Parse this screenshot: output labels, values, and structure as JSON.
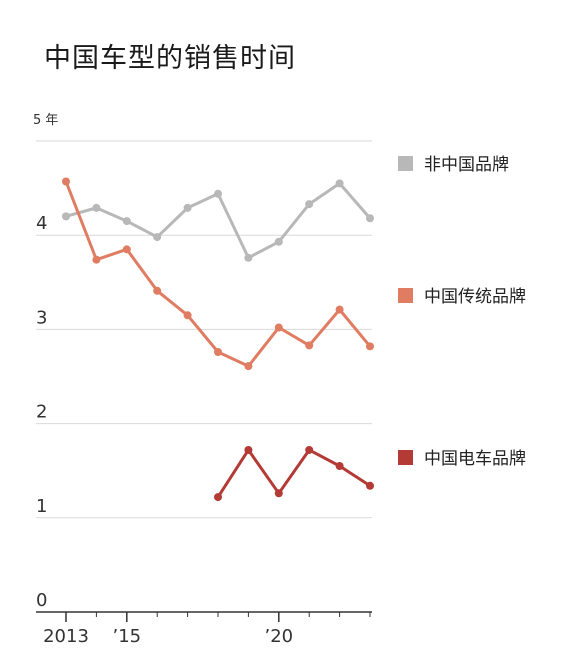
{
  "chart_data": {
    "type": "line",
    "title": "中国车型的销售时间",
    "y_unit_label": "5 年",
    "ylim": [
      0,
      5
    ],
    "y_ticks": [
      {
        "value": 0,
        "label": "0"
      },
      {
        "value": 1,
        "label": "1"
      },
      {
        "value": 2,
        "label": "2"
      },
      {
        "value": 3,
        "label": "3"
      },
      {
        "value": 4,
        "label": "4"
      }
    ],
    "xlim": [
      2013,
      2023
    ],
    "x_ticks": [
      {
        "value": 2013,
        "label": "2013"
      },
      {
        "value": 2015,
        "label": "’15"
      },
      {
        "value": 2020,
        "label": "’20"
      }
    ],
    "grid": true,
    "legend_placement": "right",
    "series": [
      {
        "name": "非中国品牌",
        "color": "#b8b8b8",
        "x": [
          2013,
          2014,
          2015,
          2016,
          2017,
          2018,
          2019,
          2020,
          2021,
          2022,
          2023
        ],
        "values": [
          4.2,
          4.29,
          4.15,
          3.98,
          4.29,
          4.44,
          3.76,
          3.93,
          4.33,
          4.55,
          4.18
        ]
      },
      {
        "name": "中国传统品牌",
        "color": "#e07c62",
        "x": [
          2013,
          2014,
          2015,
          2016,
          2017,
          2018,
          2019,
          2020,
          2021,
          2022,
          2023
        ],
        "values": [
          4.57,
          3.74,
          3.85,
          3.41,
          3.15,
          2.76,
          2.61,
          3.02,
          2.83,
          3.21,
          2.82
        ]
      },
      {
        "name": "中国电车品牌",
        "color": "#b33a35",
        "x": [
          2018,
          2019,
          2020,
          2021,
          2022,
          2023
        ],
        "values": [
          1.22,
          1.72,
          1.26,
          1.72,
          1.55,
          1.34
        ]
      }
    ]
  }
}
